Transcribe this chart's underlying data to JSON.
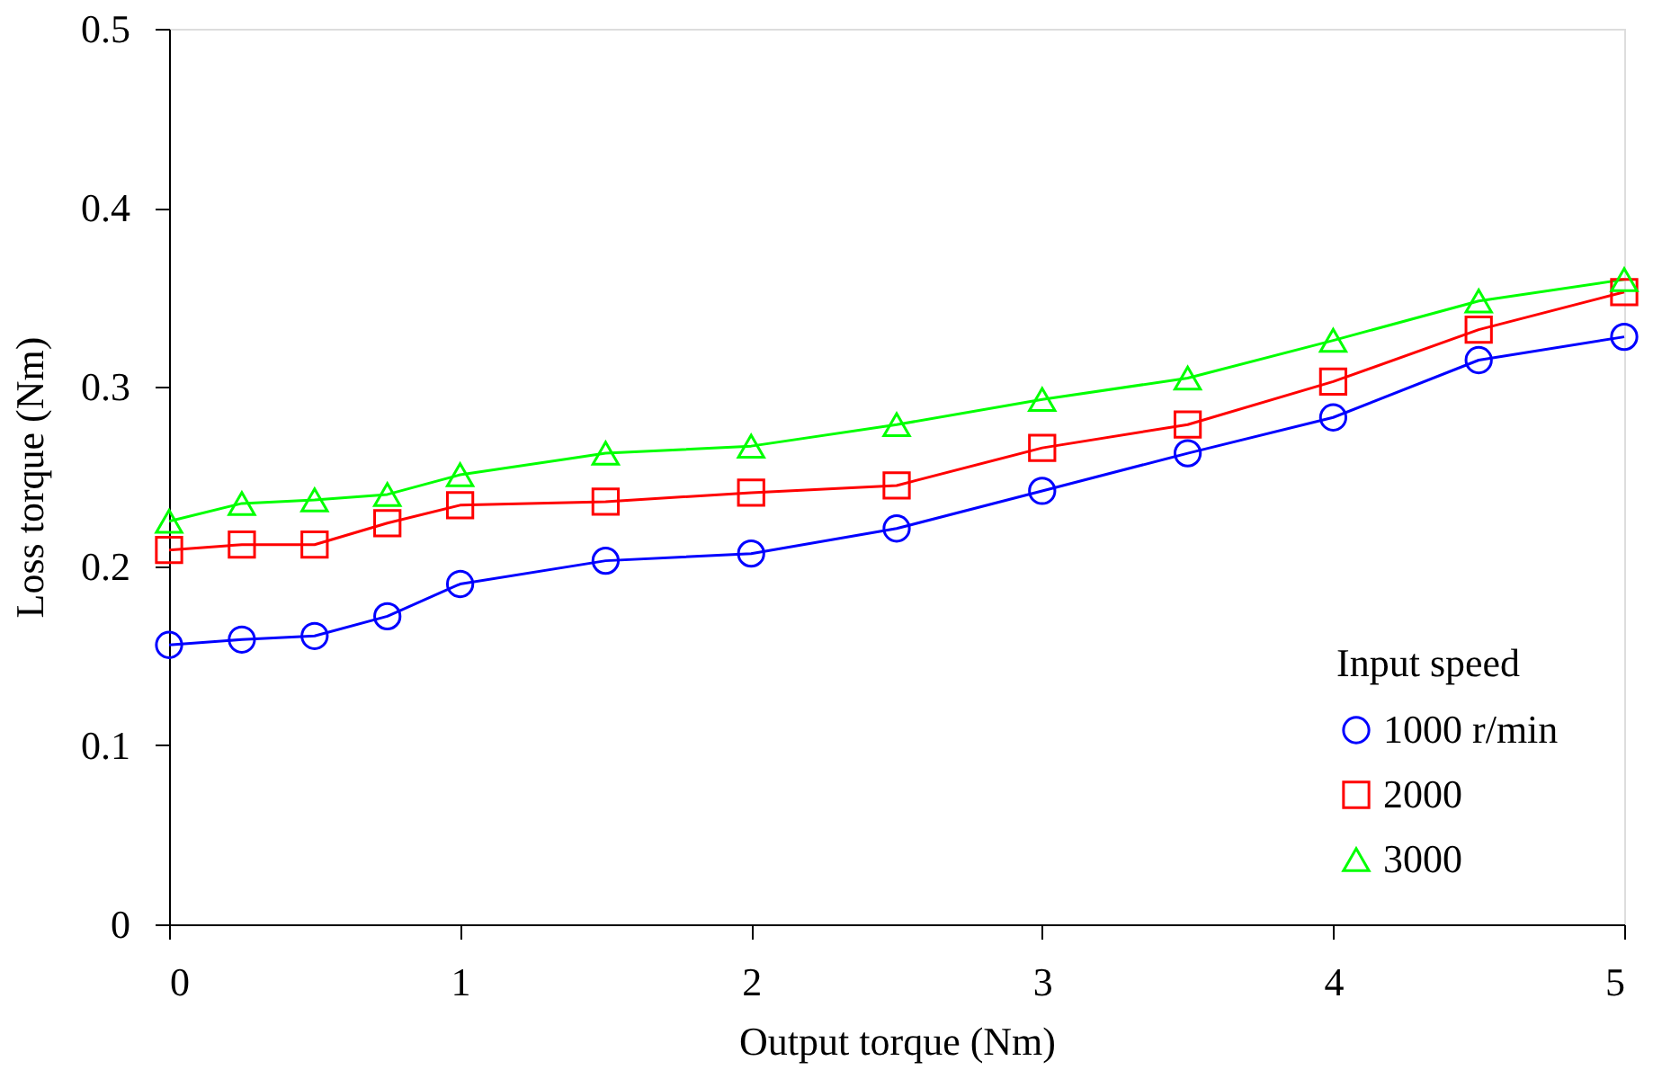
{
  "chart_data": {
    "type": "line",
    "xlabel": "Output torque (Nm)",
    "ylabel": "Loss torque (Nm)",
    "legend_title": "Input speed",
    "x": [
      0,
      0.25,
      0.5,
      0.75,
      1,
      1.5,
      2,
      2.5,
      3,
      3.5,
      4,
      4.5,
      5
    ],
    "series": [
      {
        "name": "1000   r/min",
        "color": "#0000ff",
        "marker": "circle",
        "values": [
          0.156,
          0.159,
          0.161,
          0.172,
          0.19,
          0.203,
          0.207,
          0.221,
          0.242,
          0.263,
          0.283,
          0.315,
          0.328
        ]
      },
      {
        "name": "2000",
        "color": "#ff0000",
        "marker": "square",
        "values": [
          0.209,
          0.212,
          0.212,
          0.224,
          0.234,
          0.236,
          0.241,
          0.245,
          0.266,
          0.279,
          0.303,
          0.332,
          0.353
        ]
      },
      {
        "name": "3000",
        "color": "#00ff00",
        "marker": "triangle",
        "values": [
          0.225,
          0.235,
          0.237,
          0.24,
          0.251,
          0.263,
          0.267,
          0.279,
          0.293,
          0.305,
          0.326,
          0.348,
          0.36
        ]
      }
    ],
    "xlim": [
      0,
      5
    ],
    "xticks": [
      0,
      1,
      2,
      3,
      4,
      5
    ],
    "ylim": [
      0,
      0.5
    ],
    "yticks": [
      0,
      0.1,
      0.2,
      0.3,
      0.4,
      0.5
    ],
    "grid": false,
    "legend": "bottom right",
    "line_style": "solid"
  }
}
